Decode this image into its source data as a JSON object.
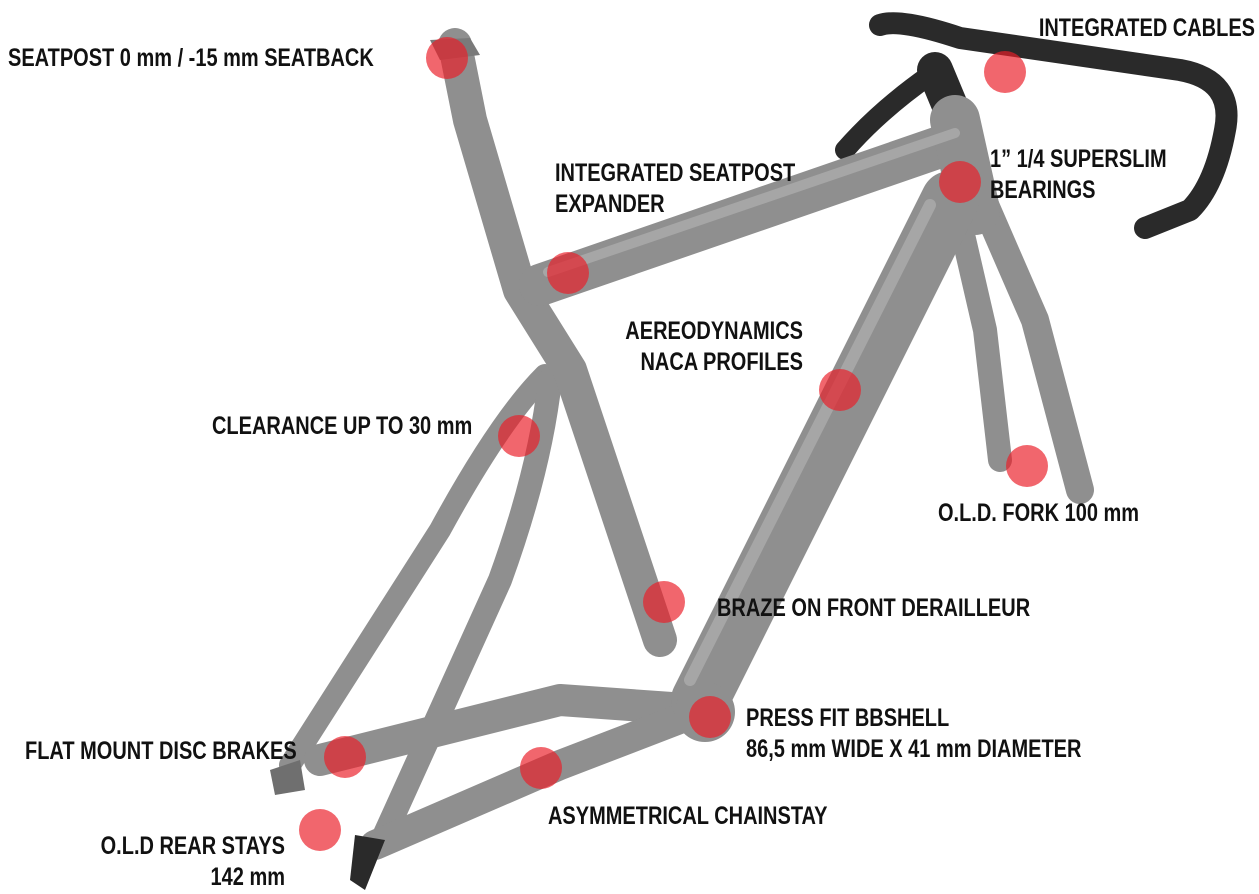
{
  "annotations": [
    {
      "lines": [
        "SEATPOST 0 mm / -15 mm SEATBACK"
      ]
    },
    {
      "lines": [
        "INTEGRATED CABLES"
      ]
    },
    {
      "lines": [
        "INTEGRATED SEATPOST",
        "EXPANDER"
      ]
    },
    {
      "lines": [
        "1” 1/4 SUPERSLIM",
        "BEARINGS"
      ]
    },
    {
      "lines": [
        "AEREODYNAMICS",
        "NACA PROFILES"
      ]
    },
    {
      "lines": [
        "CLEARANCE UP TO 30 mm"
      ]
    },
    {
      "lines": [
        "O.L.D. FORK 100 mm"
      ]
    },
    {
      "lines": [
        "BRAZE ON FRONT DERAILLEUR"
      ]
    },
    {
      "lines": [
        "PRESS FIT BBSHELL",
        "86,5 mm WIDE X 41 mm DIAMETER"
      ]
    },
    {
      "lines": [
        "FLAT MOUNT DISC BRAKES"
      ]
    },
    {
      "lines": [
        "ASYMMETRICAL CHAINSTAY"
      ]
    },
    {
      "lines": [
        "O.L.D REAR STAYS",
        "142 mm"
      ]
    }
  ]
}
